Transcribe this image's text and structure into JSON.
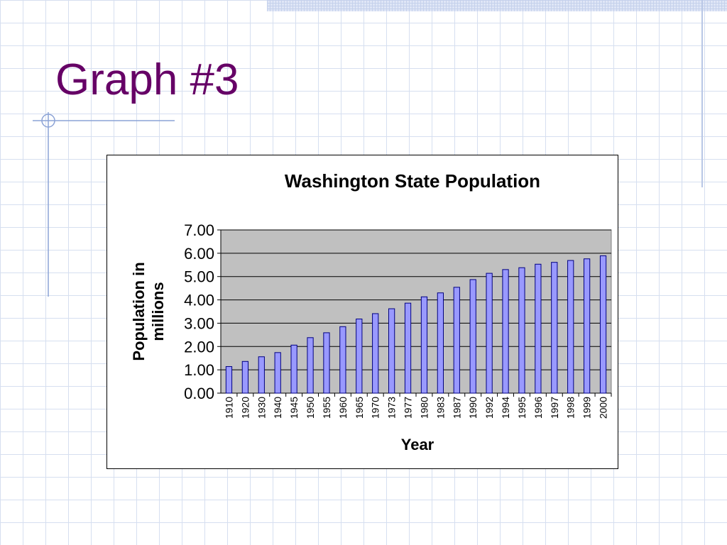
{
  "slide": {
    "title": "Graph #3"
  },
  "colors": {
    "title": "#660066",
    "plot_background": "#c0c0c0",
    "bar_fill": "#9999ff",
    "bar_stroke": "#000080",
    "grid": "#000000"
  },
  "chart_data": {
    "type": "bar",
    "title": "Washington State Population",
    "xlabel": "Year",
    "ylabel": "Population in millions",
    "ylabel_lines": [
      "Population in",
      "millions"
    ],
    "ylim": [
      0,
      7
    ],
    "yticks": [
      0,
      1,
      2,
      3,
      4,
      5,
      6,
      7
    ],
    "ytick_labels": [
      "0.00",
      "1.00",
      "2.00",
      "3.00",
      "4.00",
      "5.00",
      "6.00",
      "7.00"
    ],
    "grid": true,
    "legend": "none",
    "categories": [
      "1910",
      "1920",
      "1930",
      "1940",
      "1945",
      "1950",
      "1955",
      "1960",
      "1965",
      "1970",
      "1973",
      "1977",
      "1980",
      "1983",
      "1987",
      "1990",
      "1992",
      "1994",
      "1995",
      "1996",
      "1997",
      "1998",
      "1999",
      "2000"
    ],
    "series": [
      {
        "name": "Population",
        "values": [
          1.14,
          1.36,
          1.56,
          1.74,
          2.06,
          2.38,
          2.59,
          2.85,
          3.18,
          3.41,
          3.62,
          3.86,
          4.13,
          4.3,
          4.54,
          4.87,
          5.14,
          5.3,
          5.38,
          5.53,
          5.61,
          5.69,
          5.76,
          5.89
        ]
      }
    ]
  }
}
